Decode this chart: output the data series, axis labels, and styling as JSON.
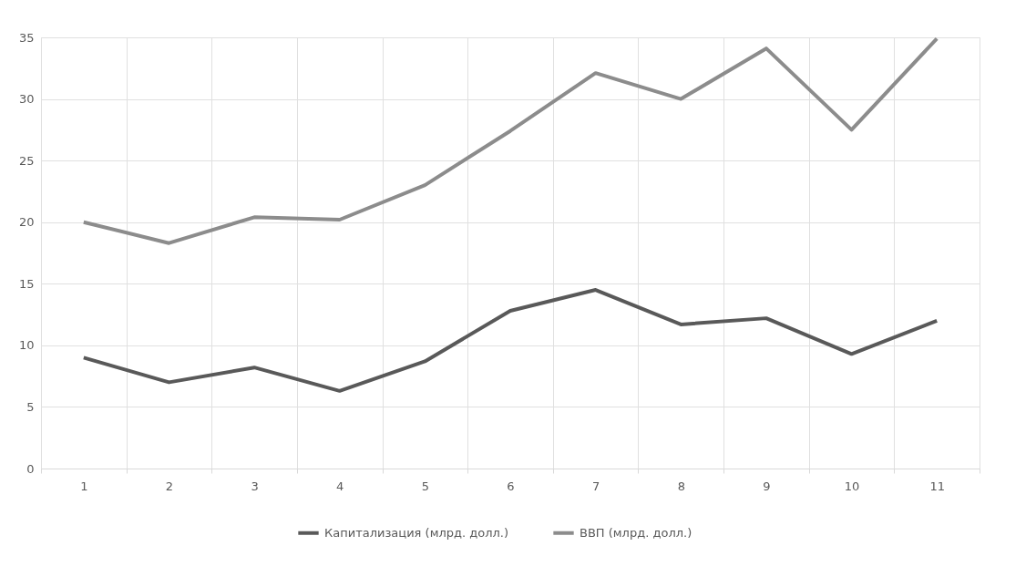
{
  "chart_data": {
    "type": "line",
    "categories": [
      "1",
      "2",
      "3",
      "4",
      "5",
      "6",
      "7",
      "8",
      "9",
      "10",
      "11"
    ],
    "series": [
      {
        "name": "Капитализация (млрд. долл.)",
        "color": "#595959",
        "values": [
          9.0,
          7.0,
          8.2,
          6.3,
          8.7,
          12.8,
          14.5,
          11.7,
          12.2,
          9.3,
          12.0
        ]
      },
      {
        "name": "ВВП (млрд. долл.)",
        "color": "#8c8c8c",
        "values": [
          20.0,
          18.3,
          20.4,
          20.2,
          23.0,
          27.4,
          32.1,
          30.0,
          34.1,
          27.5,
          34.9
        ]
      }
    ],
    "ylim": [
      0,
      35
    ],
    "yticks": [
      0,
      5,
      10,
      15,
      20,
      25,
      30,
      35
    ],
    "grid": true,
    "legend": "bottom",
    "marker": "none",
    "line_style": "solid"
  }
}
